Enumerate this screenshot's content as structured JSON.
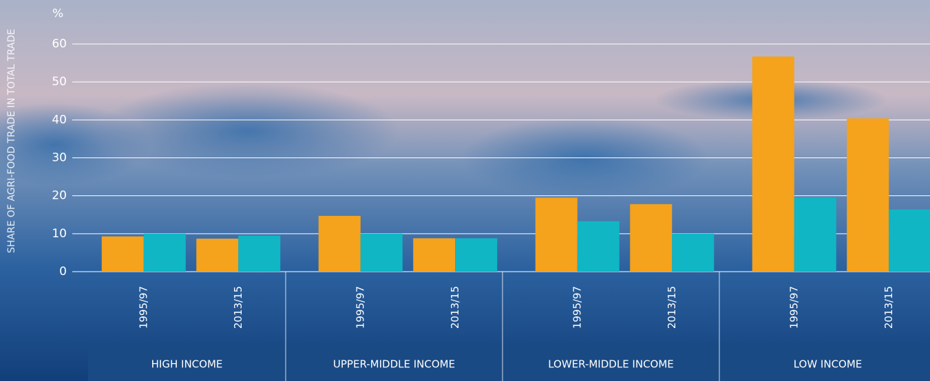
{
  "chart_data": {
    "type": "bar",
    "y_label": "SHARE OF AGRI-FOOD TRADE IN TOTAL TRADE",
    "unit": "%",
    "categories": [
      "1995/97",
      "2013/15",
      "1995/97",
      "2013/15",
      "1995/97",
      "2013/15",
      "1995/97",
      "2013/15"
    ],
    "groups": [
      "HIGH INCOME",
      "UPPER-MIDDLE INCOME",
      "LOWER-MIDDLE INCOME",
      "LOW INCOME"
    ],
    "series": [
      {
        "color": "#f5a21c",
        "values": [
          9.3,
          8.7,
          14.7,
          8.8,
          19.5,
          17.8,
          56.7,
          40.4
        ]
      },
      {
        "color": "#10b6c4",
        "values": [
          10,
          9.5,
          10,
          8.8,
          13.3,
          10,
          19.5,
          16.4
        ]
      }
    ],
    "ylim": [
      0,
      60
    ],
    "yticks": [
      0,
      10,
      20,
      30,
      40,
      50,
      60
    ],
    "grid": true
  }
}
